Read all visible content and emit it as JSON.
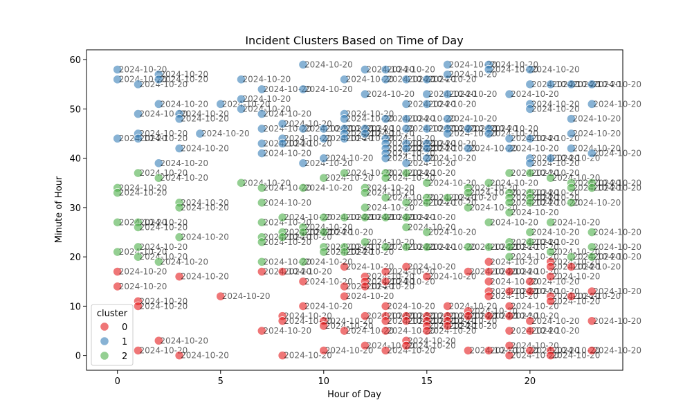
{
  "chart_data": {
    "type": "scatter",
    "title": "Incident Clusters Based on Time of Day",
    "xlabel": "Hour of Day",
    "ylabel": "Minute of Hour",
    "xlim": [
      -1.5,
      24.5
    ],
    "ylim": [
      -3,
      62
    ],
    "xticks": [
      0,
      5,
      10,
      15,
      20
    ],
    "yticks": [
      0,
      10,
      20,
      30,
      40,
      50,
      60
    ],
    "grid": false,
    "point_label_text": "2024-10-20",
    "colors": {
      "0": "#e41a1c",
      "1": "#377eb8",
      "2": "#4daf4a"
    },
    "legend": {
      "title": "cluster",
      "placement": "lower-left",
      "entries": [
        "0",
        "1",
        "2"
      ]
    },
    "series": [
      {
        "name": "0",
        "points": [
          [
            0,
            17
          ],
          [
            0,
            14
          ],
          [
            1,
            11
          ],
          [
            1,
            10
          ],
          [
            1,
            1
          ],
          [
            2,
            3
          ],
          [
            3,
            16
          ],
          [
            3,
            0
          ],
          [
            5,
            12
          ],
          [
            7,
            17
          ],
          [
            7,
            5
          ],
          [
            8,
            17
          ],
          [
            8,
            8
          ],
          [
            8,
            7
          ],
          [
            8,
            0
          ],
          [
            9,
            15
          ],
          [
            9,
            10
          ],
          [
            10,
            7
          ],
          [
            10,
            6
          ],
          [
            10,
            1
          ],
          [
            11,
            18
          ],
          [
            11,
            14
          ],
          [
            11,
            12
          ],
          [
            11,
            5
          ],
          [
            12,
            16
          ],
          [
            12,
            15
          ],
          [
            12,
            14
          ],
          [
            12,
            8
          ],
          [
            12,
            2
          ],
          [
            13,
            17
          ],
          [
            13,
            15
          ],
          [
            13,
            10
          ],
          [
            13,
            8
          ],
          [
            13,
            7
          ],
          [
            13,
            5
          ],
          [
            13,
            1
          ],
          [
            14,
            18
          ],
          [
            14,
            8
          ],
          [
            14,
            7
          ],
          [
            14,
            3
          ],
          [
            14,
            2
          ],
          [
            15,
            16
          ],
          [
            15,
            8
          ],
          [
            15,
            7
          ],
          [
            15,
            6
          ],
          [
            15,
            5
          ],
          [
            16,
            10
          ],
          [
            16,
            8
          ],
          [
            16,
            7
          ],
          [
            16,
            6
          ],
          [
            17,
            17
          ],
          [
            17,
            9
          ],
          [
            17,
            8
          ],
          [
            17,
            1
          ],
          [
            18,
            19
          ],
          [
            18,
            17
          ],
          [
            18,
            15
          ],
          [
            18,
            13
          ],
          [
            18,
            12
          ],
          [
            18,
            8
          ],
          [
            18,
            1
          ],
          [
            19,
            17
          ],
          [
            19,
            13
          ],
          [
            19,
            10
          ],
          [
            19,
            8
          ],
          [
            19,
            5
          ],
          [
            19,
            2
          ],
          [
            19,
            0
          ],
          [
            20,
            15
          ],
          [
            20,
            13
          ],
          [
            20,
            7
          ],
          [
            20,
            5
          ],
          [
            20,
            1
          ],
          [
            21,
            19
          ],
          [
            21,
            18
          ],
          [
            21,
            16
          ],
          [
            21,
            12
          ],
          [
            21,
            11
          ],
          [
            21,
            1
          ],
          [
            21,
            0
          ],
          [
            22,
            18
          ],
          [
            22,
            12
          ],
          [
            23,
            13
          ],
          [
            23,
            7
          ],
          [
            23,
            1
          ]
        ]
      },
      {
        "name": "1",
        "points": [
          [
            0,
            58
          ],
          [
            0,
            56
          ],
          [
            0,
            44
          ],
          [
            1,
            55
          ],
          [
            1,
            49
          ],
          [
            1,
            45
          ],
          [
            1,
            44
          ],
          [
            2,
            57
          ],
          [
            2,
            56
          ],
          [
            2,
            51
          ],
          [
            2,
            39
          ],
          [
            3,
            49
          ],
          [
            3,
            48
          ],
          [
            3,
            42
          ],
          [
            4,
            45
          ],
          [
            5,
            51
          ],
          [
            6,
            56
          ],
          [
            6,
            52
          ],
          [
            6,
            50
          ],
          [
            7,
            54
          ],
          [
            7,
            49
          ],
          [
            7,
            46
          ],
          [
            7,
            43
          ],
          [
            7,
            41
          ],
          [
            8,
            47
          ],
          [
            8,
            44
          ],
          [
            8,
            43
          ],
          [
            9,
            59
          ],
          [
            9,
            54
          ],
          [
            9,
            46
          ],
          [
            9,
            39
          ],
          [
            10,
            46
          ],
          [
            10,
            44
          ],
          [
            10,
            40
          ],
          [
            11,
            56
          ],
          [
            11,
            49
          ],
          [
            11,
            48
          ],
          [
            11,
            46
          ],
          [
            11,
            45
          ],
          [
            11,
            44
          ],
          [
            12,
            58
          ],
          [
            12,
            53
          ],
          [
            12,
            46
          ],
          [
            12,
            45
          ],
          [
            13,
            58
          ],
          [
            13,
            56
          ],
          [
            13,
            48
          ],
          [
            13,
            44
          ],
          [
            13,
            43
          ],
          [
            13,
            42
          ],
          [
            13,
            41
          ],
          [
            13,
            40
          ],
          [
            14,
            56
          ],
          [
            14,
            51
          ],
          [
            14,
            48
          ],
          [
            14,
            46
          ],
          [
            14,
            43
          ],
          [
            14,
            42
          ],
          [
            14,
            39
          ],
          [
            15,
            56
          ],
          [
            15,
            53
          ],
          [
            15,
            51
          ],
          [
            15,
            46
          ],
          [
            15,
            43
          ],
          [
            15,
            42
          ],
          [
            15,
            40
          ],
          [
            16,
            59
          ],
          [
            16,
            57
          ],
          [
            16,
            53
          ],
          [
            16,
            48
          ],
          [
            16,
            46
          ],
          [
            16,
            45
          ],
          [
            17,
            42
          ],
          [
            17,
            46
          ],
          [
            18,
            59
          ],
          [
            18,
            58
          ],
          [
            18,
            46
          ],
          [
            18,
            45
          ],
          [
            19,
            53
          ],
          [
            19,
            44
          ],
          [
            19,
            42
          ],
          [
            20,
            58
          ],
          [
            20,
            55
          ],
          [
            20,
            51
          ],
          [
            20,
            50
          ],
          [
            20,
            44
          ],
          [
            20,
            40
          ],
          [
            20,
            39
          ],
          [
            21,
            55
          ],
          [
            21,
            40
          ],
          [
            22,
            55
          ],
          [
            22,
            48
          ],
          [
            22,
            45
          ],
          [
            22,
            42
          ],
          [
            23,
            55
          ],
          [
            23,
            51
          ],
          [
            23,
            41
          ]
        ]
      },
      {
        "name": "2",
        "points": [
          [
            0,
            34
          ],
          [
            0,
            33
          ],
          [
            0,
            27
          ],
          [
            0,
            21
          ],
          [
            1,
            37
          ],
          [
            1,
            27
          ],
          [
            1,
            26
          ],
          [
            1,
            22
          ],
          [
            1,
            20
          ],
          [
            2,
            36
          ],
          [
            2,
            19
          ],
          [
            3,
            31
          ],
          [
            3,
            30
          ],
          [
            3,
            24
          ],
          [
            6,
            35
          ],
          [
            7,
            34
          ],
          [
            7,
            31
          ],
          [
            7,
            27
          ],
          [
            7,
            24
          ],
          [
            7,
            23
          ],
          [
            7,
            19
          ],
          [
            8,
            28
          ],
          [
            8,
            25
          ],
          [
            8,
            24
          ],
          [
            9,
            34
          ],
          [
            9,
            26
          ],
          [
            9,
            25
          ],
          [
            9,
            19
          ],
          [
            10,
            36
          ],
          [
            10,
            28
          ],
          [
            10,
            25
          ],
          [
            10,
            22
          ],
          [
            10,
            21
          ],
          [
            11,
            37
          ],
          [
            11,
            28
          ],
          [
            11,
            22
          ],
          [
            11,
            21
          ],
          [
            12,
            34
          ],
          [
            12,
            33
          ],
          [
            12,
            30
          ],
          [
            12,
            28
          ],
          [
            12,
            23
          ],
          [
            13,
            37
          ],
          [
            13,
            36
          ],
          [
            13,
            32
          ],
          [
            13,
            28
          ],
          [
            13,
            22
          ],
          [
            14,
            37
          ],
          [
            14,
            31
          ],
          [
            14,
            28
          ],
          [
            14,
            26
          ],
          [
            14,
            22
          ],
          [
            15,
            35
          ],
          [
            15,
            32
          ],
          [
            15,
            31
          ],
          [
            15,
            25
          ],
          [
            15,
            22
          ],
          [
            16,
            32
          ],
          [
            17,
            34
          ],
          [
            17,
            33
          ],
          [
            17,
            30
          ],
          [
            17,
            22
          ],
          [
            18,
            35
          ],
          [
            18,
            27
          ],
          [
            18,
            22
          ],
          [
            19,
            37
          ],
          [
            19,
            33
          ],
          [
            19,
            32
          ],
          [
            19,
            31
          ],
          [
            19,
            29
          ],
          [
            19,
            23
          ],
          [
            19,
            22
          ],
          [
            19,
            20
          ],
          [
            20,
            37
          ],
          [
            20,
            33
          ],
          [
            20,
            32
          ],
          [
            20,
            31
          ],
          [
            20,
            25
          ],
          [
            20,
            23
          ],
          [
            21,
            36
          ],
          [
            21,
            27
          ],
          [
            21,
            21
          ],
          [
            22,
            35
          ],
          [
            22,
            34
          ],
          [
            22,
            31
          ],
          [
            22,
            20
          ],
          [
            23,
            35
          ],
          [
            23,
            34
          ],
          [
            23,
            25
          ],
          [
            23,
            22
          ],
          [
            23,
            20
          ]
        ]
      }
    ]
  }
}
